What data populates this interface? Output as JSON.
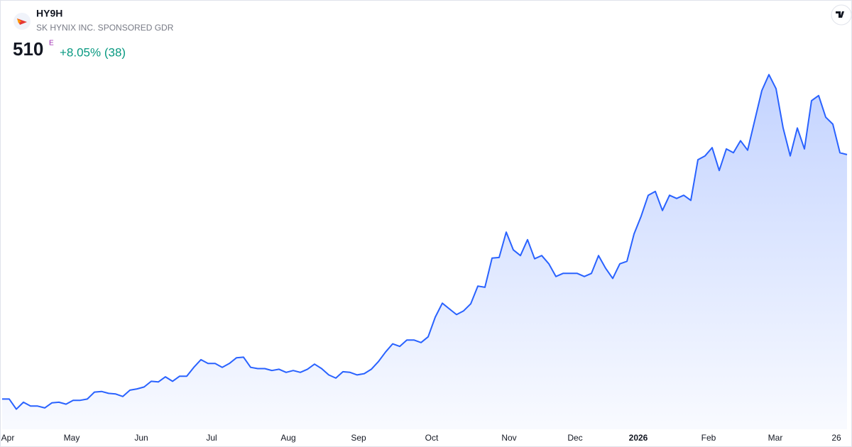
{
  "header": {
    "symbol": "HY9H",
    "name": "SK HYNIX INC. SPONSORED GDR",
    "price": "510",
    "price_flag": "E",
    "change": "+8.05% (38)"
  },
  "chart_data": {
    "type": "area",
    "values": [
      125,
      125,
      109,
      120,
      114,
      114,
      111,
      119,
      120,
      117,
      123,
      123,
      125,
      136,
      137,
      134,
      133,
      129,
      139,
      141,
      144,
      153,
      152,
      160,
      153,
      161,
      161,
      175,
      187,
      181,
      181,
      175,
      181,
      190,
      191,
      175,
      173,
      173,
      170,
      172,
      167,
      170,
      167,
      172,
      180,
      173,
      163,
      158,
      168,
      167,
      163,
      165,
      172,
      184,
      199,
      212,
      208,
      218,
      218,
      214,
      223,
      254,
      276,
      267,
      258,
      264,
      275,
      303,
      301,
      347,
      348,
      388,
      360,
      351,
      376,
      346,
      351,
      338,
      318,
      323,
      323,
      323,
      318,
      323,
      351,
      331,
      315,
      338,
      342,
      385,
      413,
      446,
      452,
      422,
      446,
      441,
      446,
      438,
      502,
      508,
      521,
      485,
      519,
      513,
      532,
      517,
      564,
      611,
      636,
      614,
      552,
      508,
      552,
      519,
      595,
      603,
      569,
      558,
      513,
      510
    ],
    "color": "#2962ff",
    "xlim": [
      0,
      119
    ],
    "ylim": [
      83,
      653
    ],
    "xticks": [
      {
        "value": 0.8,
        "label": "Apr"
      },
      {
        "value": 9.8,
        "label": "May"
      },
      {
        "value": 19.6,
        "label": "Jun"
      },
      {
        "value": 29.5,
        "label": "Jul"
      },
      {
        "value": 40.3,
        "label": "Aug"
      },
      {
        "value": 50.2,
        "label": "Sep"
      },
      {
        "value": 60.5,
        "label": "Oct"
      },
      {
        "value": 71.4,
        "label": "Nov"
      },
      {
        "value": 80.7,
        "label": "Dec"
      },
      {
        "value": 89.6,
        "label": "2026",
        "bold": true
      },
      {
        "value": 99.5,
        "label": "Feb"
      },
      {
        "value": 108.9,
        "label": "Mar"
      },
      {
        "value": 117.5,
        "label": "26"
      }
    ]
  }
}
